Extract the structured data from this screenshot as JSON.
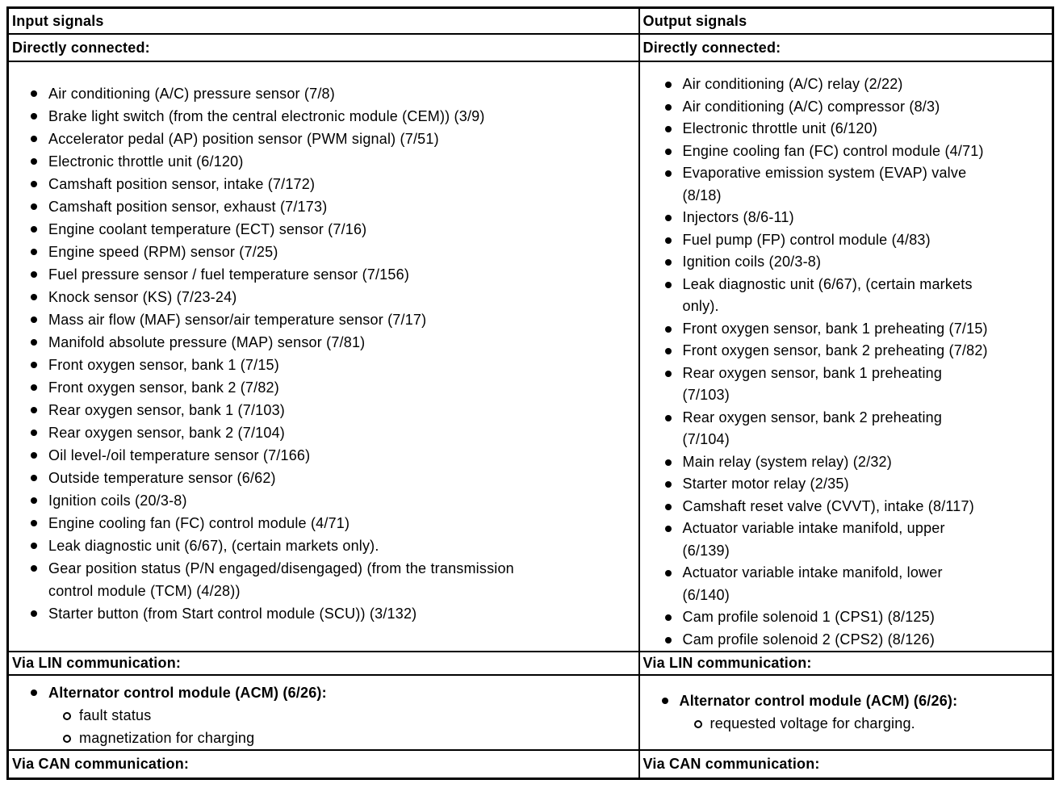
{
  "input": {
    "header": "Input signals",
    "direct_label": "Directly connected:",
    "direct_items": [
      "Air conditioning (A/C) pressure sensor (7/8)",
      "Brake light switch (from the central electronic module (CEM)) (3/9)",
      "Accelerator pedal (AP) position sensor (PWM signal) (7/51)",
      "Electronic throttle unit (6/120)",
      "Camshaft position sensor, intake (7/172)",
      "Camshaft position sensor, exhaust (7/173)",
      "Engine coolant temperature (ECT) sensor (7/16)",
      "Engine speed (RPM) sensor (7/25)",
      "Fuel pressure sensor / fuel temperature sensor (7/156)",
      "Knock sensor (KS) (7/23-24)",
      "Mass air flow (MAF) sensor/air temperature sensor (7/17)",
      "Manifold absolute pressure (MAP) sensor (7/81)",
      "Front oxygen sensor, bank 1 (7/15)",
      "Front oxygen sensor, bank 2 (7/82)",
      "Rear oxygen sensor, bank 1 (7/103)",
      "Rear oxygen sensor, bank 2 (7/104)",
      "Oil level-/oil temperature sensor (7/166)",
      "Outside temperature sensor (6/62)",
      "Ignition coils (20/3-8)",
      "Engine cooling fan (FC) control module (4/71)",
      "Leak diagnostic unit (6/67), (certain markets only).",
      "Gear position status (P/N engaged/disengaged) (from the transmission\ncontrol module (TCM) (4/28))",
      "Starter button (from Start control module (SCU)) (3/132)"
    ],
    "lin_label": "Via LIN communication:",
    "lin_module": "Alternator control module (ACM) (6/26):",
    "lin_subitems": [
      "fault status",
      "magnetization for charging"
    ],
    "can_label": "Via CAN communication:"
  },
  "output": {
    "header": "Output signals",
    "direct_label": "Directly connected:",
    "direct_items": [
      "Air conditioning (A/C) relay (2/22)",
      "Air conditioning (A/C) compressor (8/3)",
      "Electronic throttle unit (6/120)",
      "Engine cooling fan (FC) control module (4/71)",
      "Evaporative emission system (EVAP) valve\n(8/18)",
      "Injectors (8/6-11)",
      "Fuel pump (FP) control module (4/83)",
      "Ignition coils (20/3-8)",
      "Leak diagnostic unit (6/67), (certain markets\nonly).",
      "Front oxygen sensor, bank 1 preheating (7/15)",
      "Front oxygen sensor, bank 2 preheating (7/82)",
      "Rear oxygen sensor, bank 1 preheating\n(7/103)",
      "Rear oxygen sensor, bank 2 preheating\n(7/104)",
      "Main relay (system relay) (2/32)",
      "Starter motor relay (2/35)",
      "Camshaft reset valve (CVVT), intake (8/117)",
      "Actuator variable intake manifold, upper\n(6/139)",
      "Actuator variable intake manifold, lower\n(6/140)",
      "Cam profile solenoid 1 (CPS1) (8/125)",
      "Cam profile solenoid 2 (CPS2) (8/126)"
    ],
    "lin_label": "Via LIN communication:",
    "lin_module": "Alternator control module (ACM) (6/26):",
    "lin_subitems": [
      "requested voltage for charging."
    ],
    "can_label": "Via CAN communication:"
  }
}
